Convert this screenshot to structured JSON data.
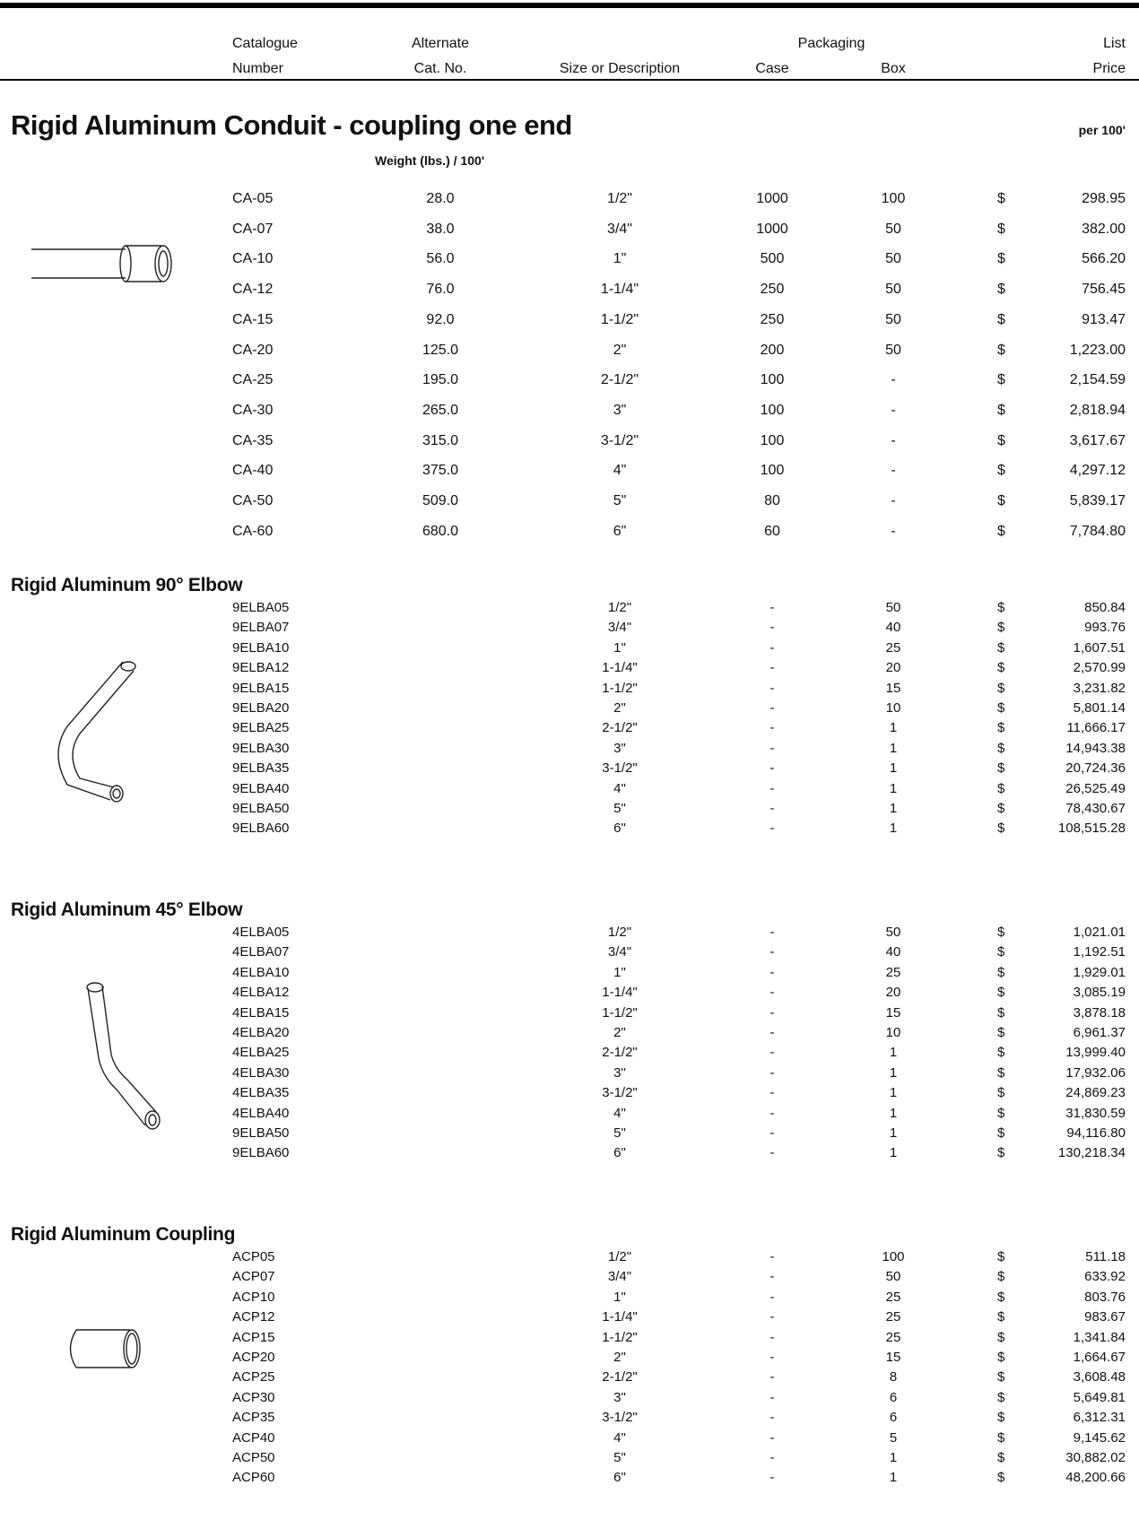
{
  "header": {
    "row1": [
      "Catalogue",
      "Alternate",
      "Packaging",
      "List"
    ],
    "row2": [
      "Number",
      "Cat. No.",
      "Size or Description",
      "Case",
      "Box",
      "Price"
    ]
  },
  "sections": [
    {
      "title": "Rigid Aluminum Conduit - coupling one end",
      "unit": "per 100'",
      "subheading": "Weight (lbs.) / 100'",
      "rows": [
        [
          "CA-05",
          "28.0",
          "1/2\"",
          "1000",
          "100",
          "$",
          "298.95"
        ],
        [
          "CA-07",
          "38.0",
          "3/4\"",
          "1000",
          "50",
          "$",
          "382.00"
        ],
        [
          "CA-10",
          "56.0",
          "1\"",
          "500",
          "50",
          "$",
          "566.20"
        ],
        [
          "CA-12",
          "76.0",
          "1-1/4\"",
          "250",
          "50",
          "$",
          "756.45"
        ],
        [
          "CA-15",
          "92.0",
          "1-1/2\"",
          "250",
          "50",
          "$",
          "913.47"
        ],
        [
          "CA-20",
          "125.0",
          "2\"",
          "200",
          "50",
          "$",
          "1,223.00"
        ],
        [
          "CA-25",
          "195.0",
          "2-1/2\"",
          "100",
          "-",
          "$",
          "2,154.59"
        ],
        [
          "CA-30",
          "265.0",
          "3\"",
          "100",
          "-",
          "$",
          "2,818.94"
        ],
        [
          "CA-35",
          "315.0",
          "3-1/2\"",
          "100",
          "-",
          "$",
          "3,617.67"
        ],
        [
          "CA-40",
          "375.0",
          "4\"",
          "100",
          "-",
          "$",
          "4,297.12"
        ],
        [
          "CA-50",
          "509.0",
          "5\"",
          "80",
          "-",
          "$",
          "5,839.17"
        ],
        [
          "CA-60",
          "680.0",
          "6\"",
          "60",
          "-",
          "$",
          "7,784.80"
        ]
      ]
    },
    {
      "title": "Rigid Aluminum 90° Elbow",
      "rows": [
        [
          "9ELBA05",
          "1/2\"",
          "-",
          "50",
          "$",
          "850.84"
        ],
        [
          "9ELBA07",
          "3/4\"",
          "-",
          "40",
          "$",
          "993.76"
        ],
        [
          "9ELBA10",
          "1\"",
          "-",
          "25",
          "$",
          "1,607.51"
        ],
        [
          "9ELBA12",
          "1-1/4\"",
          "-",
          "20",
          "$",
          "2,570.99"
        ],
        [
          "9ELBA15",
          "1-1/2\"",
          "-",
          "15",
          "$",
          "3,231.82"
        ],
        [
          "9ELBA20",
          "2\"",
          "-",
          "10",
          "$",
          "5,801.14"
        ],
        [
          "9ELBA25",
          "2-1/2\"",
          "-",
          "1",
          "$",
          "11,666.17"
        ],
        [
          "9ELBA30",
          "3\"",
          "-",
          "1",
          "$",
          "14,943.38"
        ],
        [
          "9ELBA35",
          "3-1/2\"",
          "-",
          "1",
          "$",
          "20,724.36"
        ],
        [
          "9ELBA40",
          "4\"",
          "-",
          "1",
          "$",
          "26,525.49"
        ],
        [
          "9ELBA50",
          "5\"",
          "-",
          "1",
          "$",
          "78,430.67"
        ],
        [
          "9ELBA60",
          "6\"",
          "-",
          "1",
          "$",
          "108,515.28"
        ]
      ]
    },
    {
      "title": "Rigid Aluminum 45° Elbow",
      "rows": [
        [
          "4ELBA05",
          "1/2\"",
          "-",
          "50",
          "$",
          "1,021.01"
        ],
        [
          "4ELBA07",
          "3/4\"",
          "-",
          "40",
          "$",
          "1,192.51"
        ],
        [
          "4ELBA10",
          "1\"",
          "-",
          "25",
          "$",
          "1,929.01"
        ],
        [
          "4ELBA12",
          "1-1/4\"",
          "-",
          "20",
          "$",
          "3,085.19"
        ],
        [
          "4ELBA15",
          "1-1/2\"",
          "-",
          "15",
          "$",
          "3,878.18"
        ],
        [
          "4ELBA20",
          "2\"",
          "-",
          "10",
          "$",
          "6,961.37"
        ],
        [
          "4ELBA25",
          "2-1/2\"",
          "-",
          "1",
          "$",
          "13,999.40"
        ],
        [
          "4ELBA30",
          "3\"",
          "-",
          "1",
          "$",
          "17,932.06"
        ],
        [
          "4ELBA35",
          "3-1/2\"",
          "-",
          "1",
          "$",
          "24,869.23"
        ],
        [
          "4ELBA40",
          "4\"",
          "-",
          "1",
          "$",
          "31,830.59"
        ],
        [
          "9ELBA50",
          "5\"",
          "-",
          "1",
          "$",
          "94,116.80"
        ],
        [
          "9ELBA60",
          "6\"",
          "-",
          "1",
          "$",
          "130,218.34"
        ]
      ]
    },
    {
      "title": "Rigid Aluminum Coupling",
      "rows": [
        [
          "ACP05",
          "1/2\"",
          "-",
          "100",
          "$",
          "511.18"
        ],
        [
          "ACP07",
          "3/4\"",
          "-",
          "50",
          "$",
          "633.92"
        ],
        [
          "ACP10",
          "1\"",
          "-",
          "25",
          "$",
          "803.76"
        ],
        [
          "ACP12",
          "1-1/4\"",
          "-",
          "25",
          "$",
          "983.67"
        ],
        [
          "ACP15",
          "1-1/2\"",
          "-",
          "25",
          "$",
          "1,341.84"
        ],
        [
          "ACP20",
          "2\"",
          "-",
          "15",
          "$",
          "1,664.67"
        ],
        [
          "ACP25",
          "2-1/2\"",
          "-",
          "8",
          "$",
          "3,608.48"
        ],
        [
          "ACP30",
          "3\"",
          "-",
          "6",
          "$",
          "5,649.81"
        ],
        [
          "ACP35",
          "3-1/2\"",
          "-",
          "6",
          "$",
          "6,312.31"
        ],
        [
          "ACP40",
          "4\"",
          "-",
          "5",
          "$",
          "9,145.62"
        ],
        [
          "ACP50",
          "5\"",
          "-",
          "1",
          "$",
          "30,882.02"
        ],
        [
          "ACP60",
          "6\"",
          "-",
          "1",
          "$",
          "48,200.66"
        ]
      ]
    }
  ]
}
